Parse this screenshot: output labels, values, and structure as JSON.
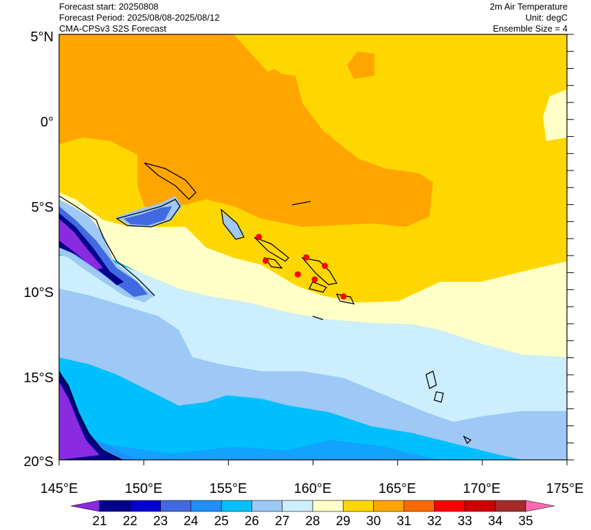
{
  "header": {
    "forecast_start": "Forecast start: 20250808",
    "forecast_period": "Forecast Period: 2025/08/08-2025/08/12",
    "model": "CMA-CPSv3 S2S Forecast",
    "variable": "2m Air Temperature",
    "unit": "Unit: degC",
    "ensemble": "Ensemble Size = 4"
  },
  "map": {
    "lat_labels": [
      "5°N",
      "0°",
      "5°S",
      "10°S",
      "15°S",
      "20°S"
    ],
    "lon_labels": [
      "145°E",
      "150°E",
      "155°E",
      "160°E",
      "165°E",
      "170°E",
      "175°E"
    ],
    "lon_range": [
      145,
      175
    ],
    "lat_range": [
      -20,
      5
    ],
    "red_markers": [
      {
        "lon": 156.8,
        "lat": -6.9
      },
      {
        "lon": 157.2,
        "lat": -8.3
      },
      {
        "lon": 159.6,
        "lat": -8.1
      },
      {
        "lon": 159.1,
        "lat": -9.1
      },
      {
        "lon": 160.1,
        "lat": -9.4
      },
      {
        "lon": 160.7,
        "lat": -8.6
      },
      {
        "lon": 161.8,
        "lat": -10.4
      }
    ]
  },
  "colorbar": {
    "levels": [
      "21",
      "22",
      "23",
      "24",
      "25",
      "26",
      "27",
      "28",
      "29",
      "30",
      "31",
      "32",
      "33",
      "34",
      "35"
    ],
    "colors": [
      "#8a2be2",
      "#00008b",
      "#0000cd",
      "#4169e1",
      "#1e90ff",
      "#00bfff",
      "#9ec8f5",
      "#cceeff",
      "#ffffc8",
      "#ffd700",
      "#ffa500",
      "#ff6a00",
      "#ff0000",
      "#cd0000",
      "#a52a2a",
      "#ff69b4"
    ]
  }
}
